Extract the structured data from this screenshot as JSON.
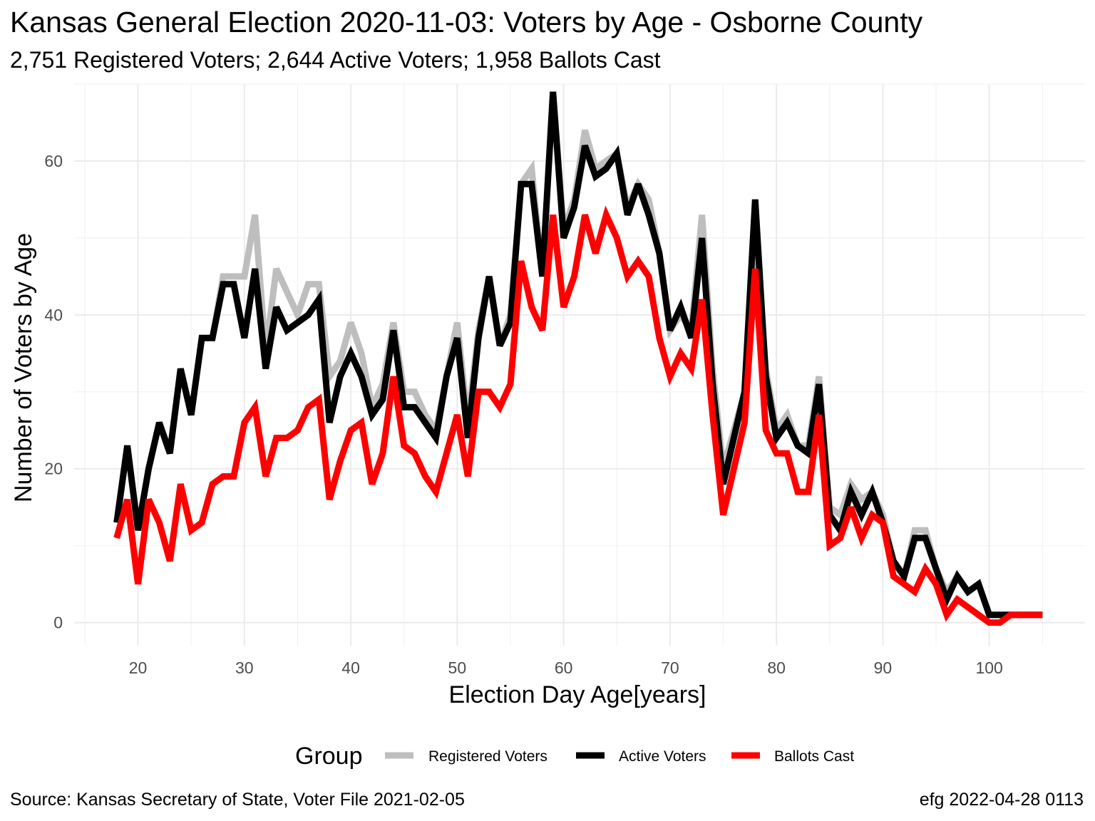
{
  "title": "Kansas General Election 2020-11-03:  Voters by Age - Osborne County",
  "subtitle": "2,751 Registered Voters; 2,644 Active Voters; 1,958 Ballots Cast",
  "caption_left": "Source:  Kansas Secretary of State, Voter File  2021-02-05",
  "caption_right": "efg 2022-04-28 0113",
  "chart_data": {
    "type": "line",
    "title": "Kansas General Election 2020-11-03:  Voters by Age - Osborne County",
    "xlabel": "Election Day Age[years]",
    "ylabel": "Number of Voters by Age",
    "xlim": [
      14,
      109
    ],
    "ylim": [
      -3,
      70
    ],
    "x_ticks": [
      20,
      30,
      40,
      50,
      60,
      70,
      80,
      90,
      100
    ],
    "y_ticks": [
      0,
      20,
      40,
      60
    ],
    "legend_title": "Group",
    "legend_position": "bottom",
    "x": [
      18,
      19,
      20,
      21,
      22,
      23,
      24,
      25,
      26,
      27,
      28,
      29,
      30,
      31,
      32,
      33,
      34,
      35,
      36,
      37,
      38,
      39,
      40,
      41,
      42,
      43,
      44,
      45,
      46,
      47,
      48,
      49,
      50,
      51,
      52,
      53,
      54,
      55,
      56,
      57,
      58,
      59,
      60,
      61,
      62,
      63,
      64,
      65,
      66,
      67,
      68,
      69,
      70,
      71,
      72,
      73,
      74,
      75,
      76,
      77,
      78,
      79,
      80,
      81,
      82,
      83,
      84,
      85,
      86,
      87,
      88,
      89,
      90,
      91,
      92,
      93,
      94,
      95,
      96,
      97,
      98,
      99,
      100,
      101,
      102,
      103,
      104,
      105
    ],
    "series": [
      {
        "name": "Registered Voters",
        "color": "#bebebe",
        "values": [
          13,
          23,
          12,
          20,
          26,
          22,
          33,
          27,
          37,
          37,
          45,
          45,
          45,
          53,
          35,
          46,
          43,
          40,
          44,
          44,
          32,
          34,
          39,
          35,
          28,
          31,
          39,
          30,
          30,
          27,
          25,
          32,
          39,
          26,
          38,
          45,
          36,
          40,
          57,
          59,
          45,
          69,
          51,
          55,
          64,
          59,
          60,
          61,
          54,
          57,
          55,
          48,
          38,
          40,
          38,
          53,
          33,
          20,
          25,
          30,
          52,
          33,
          25,
          27,
          23,
          23,
          32,
          15,
          14,
          18,
          16,
          17,
          14,
          8,
          6,
          12,
          12,
          7,
          4,
          6,
          4,
          5,
          1,
          1,
          1,
          1,
          1,
          1
        ]
      },
      {
        "name": "Active Voters",
        "color": "#000000",
        "values": [
          13,
          23,
          12,
          20,
          26,
          22,
          33,
          27,
          37,
          37,
          44,
          44,
          37,
          46,
          33,
          41,
          38,
          39,
          40,
          42,
          26,
          32,
          35,
          32,
          27,
          29,
          38,
          28,
          28,
          26,
          24,
          32,
          37,
          24,
          37,
          45,
          36,
          39,
          57,
          57,
          45,
          69,
          50,
          54,
          62,
          58,
          59,
          61,
          53,
          57,
          53,
          48,
          38,
          41,
          37,
          50,
          31,
          18,
          24,
          30,
          55,
          32,
          24,
          26,
          23,
          22,
          31,
          14,
          12,
          17,
          14,
          17,
          13,
          8,
          6,
          11,
          11,
          7,
          3,
          6,
          4,
          5,
          1,
          1,
          1,
          1,
          1,
          1
        ]
      },
      {
        "name": "Ballots Cast",
        "color": "#ff0000",
        "values": [
          11,
          16,
          5,
          16,
          13,
          8,
          18,
          12,
          13,
          18,
          19,
          19,
          26,
          28,
          19,
          24,
          24,
          25,
          28,
          29,
          16,
          21,
          25,
          26,
          18,
          22,
          32,
          23,
          22,
          19,
          17,
          22,
          27,
          19,
          30,
          30,
          28,
          31,
          47,
          41,
          38,
          53,
          41,
          45,
          53,
          48,
          53,
          50,
          45,
          47,
          45,
          37,
          32,
          35,
          33,
          42,
          27,
          14,
          20,
          26,
          46,
          25,
          22,
          22,
          17,
          17,
          27,
          10,
          11,
          15,
          11,
          14,
          13,
          6,
          5,
          4,
          7,
          5,
          1,
          3,
          2,
          1,
          0,
          0,
          1,
          1,
          1,
          1
        ]
      }
    ]
  }
}
